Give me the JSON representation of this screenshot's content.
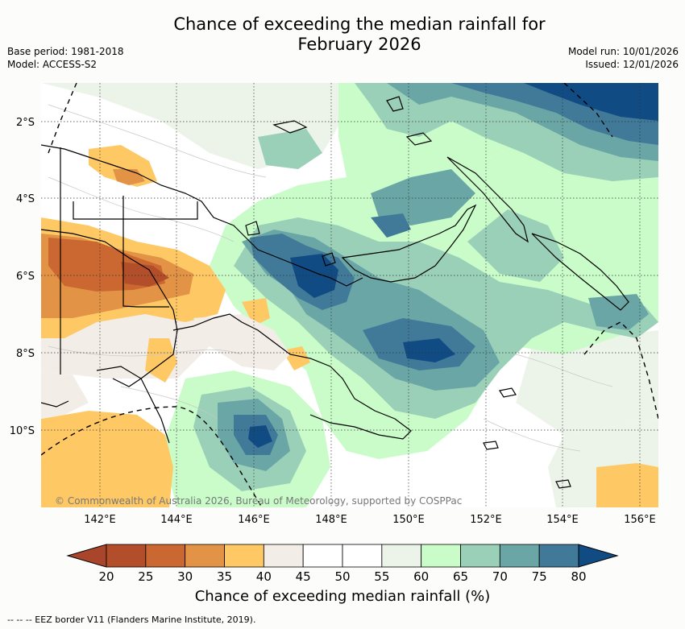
{
  "title_line1": "Chance of exceeding the median rainfall for",
  "title_line2": "February 2026",
  "meta_left": {
    "base_period": "Base period: 1981-2018",
    "model": "Model: ACCESS-S2"
  },
  "meta_right": {
    "model_run": "Model run: 10/01/2026",
    "issued": "Issued: 12/01/2026"
  },
  "copyright": "© Commonwealth of Australia 2026, Bureau of Meteorology, supported by COSPPac",
  "lon_labels": [
    "142°E",
    "144°E",
    "146°E",
    "148°E",
    "150°E",
    "152°E",
    "154°E",
    "156°E"
  ],
  "lat_labels": [
    "2°S",
    "4°S",
    "6°S",
    "8°S",
    "10°S"
  ],
  "legend": {
    "title": "Chance of exceeding median rainfall (%)",
    "ticks": [
      "20",
      "25",
      "30",
      "35",
      "40",
      "45",
      "50",
      "55",
      "60",
      "65",
      "70",
      "75",
      "80"
    ],
    "colors": [
      "#a8452a",
      "#b24e29",
      "#cb6730",
      "#e29345",
      "#fec964",
      "#f3ede8",
      "#ffffff",
      "#ffffff",
      "#ecf4ea",
      "#c9fcc9",
      "#9acfb8",
      "#6ba6a6",
      "#417a99",
      "#114b83"
    ]
  },
  "footnote": "-- -- -- EEZ border V11 (Flanders Marine Institute, 2019)."
}
